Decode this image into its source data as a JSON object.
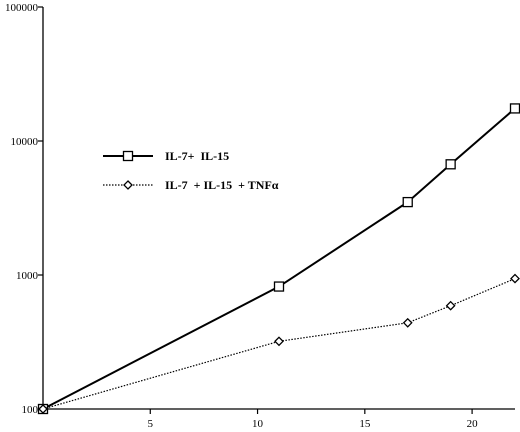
{
  "chart_data": {
    "type": "line",
    "title": "",
    "xlabel": "",
    "ylabel": "",
    "y_scale": "log",
    "xlim": [
      0,
      22
    ],
    "ylim": [
      100,
      100000
    ],
    "x_ticks": [
      5,
      10,
      15,
      20
    ],
    "y_ticks": [
      100,
      1000,
      10000,
      100000
    ],
    "grid": false,
    "legend_position": "left-center",
    "series": [
      {
        "name": "IL-7+  IL-15",
        "marker": "square",
        "line_style": "solid",
        "color": "#000000",
        "x": [
          0,
          11,
          17,
          19,
          22
        ],
        "y": [
          100,
          820,
          3500,
          6700,
          17500
        ]
      },
      {
        "name": "IL-7  + IL-15  + TNFα",
        "marker": "diamond",
        "line_style": "dotted",
        "color": "#000000",
        "x": [
          0,
          11,
          17,
          19,
          22
        ],
        "y": [
          100,
          320,
          440,
          590,
          940
        ]
      }
    ]
  }
}
